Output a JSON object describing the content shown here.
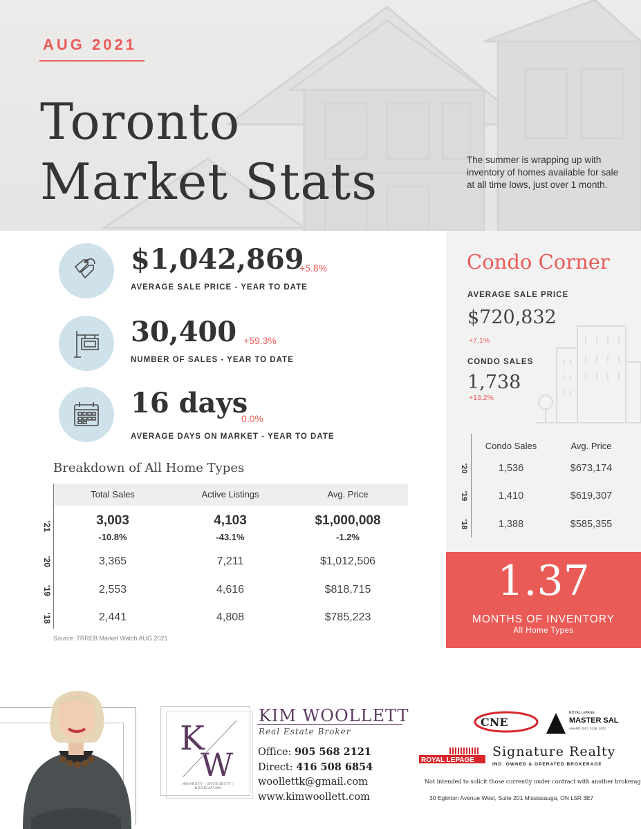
{
  "header": {
    "date": "AUG 2021",
    "title_line1": "Toronto",
    "title_line2": "Market Stats",
    "intro": "The summer is wrapping up with inventory of homes available for sale at all time lows, just over 1 month."
  },
  "stats": [
    {
      "icon": "price-tag-icon",
      "value": "$1,042,869",
      "change": "+5.8%",
      "label": "AVERAGE SALE PRICE - YEAR TO DATE"
    },
    {
      "icon": "house-sign-icon",
      "value": "30,400",
      "change": "+59.3%",
      "label": "NUMBER OF SALES - YEAR TO DATE"
    },
    {
      "icon": "calendar-icon",
      "value": "16 days",
      "change": "0.0%",
      "label": "AVERAGE DAYS ON MARKET - YEAR TO DATE"
    }
  ],
  "breakdown": {
    "title": "Breakdown of All Home Types",
    "columns": [
      "Total Sales",
      "Active Listings",
      "Avg. Price"
    ],
    "rows": [
      {
        "year": "'21",
        "cells": [
          "3,003",
          "4,103",
          "$1,000,008"
        ],
        "changes": [
          "-10.8%",
          "-43.1%",
          "-1.2%"
        ]
      },
      {
        "year": "'20",
        "cells": [
          "3,365",
          "7,211",
          "$1,012,506"
        ]
      },
      {
        "year": "'19",
        "cells": [
          "2,553",
          "4,616",
          "$818,715"
        ]
      },
      {
        "year": "'18",
        "cells": [
          "2,441",
          "4,808",
          "$785,223"
        ]
      }
    ],
    "source": "Source: TRREB Market Watch AUG 2021"
  },
  "condo": {
    "title": "Condo Corner",
    "avg_label": "AVERAGE SALE PRICE",
    "avg_value": "$720,832",
    "avg_change": "+7.1%",
    "sales_label": "CONDO SALES",
    "sales_value": "1,738",
    "sales_change": "+13.2%",
    "table_headers": [
      "Condo Sales",
      "Avg. Price"
    ],
    "rows": [
      {
        "year": "'20",
        "sales": "1,536",
        "price": "$673,174"
      },
      {
        "year": "'19",
        "sales": "1,410",
        "price": "$619,307"
      },
      {
        "year": "'18",
        "sales": "1,388",
        "price": "$585,355"
      }
    ]
  },
  "inventory": {
    "value": "1.37",
    "label": "MONTHS OF INVENTORY",
    "sublabel": "All Home Types"
  },
  "agent": {
    "name": "KIM WOOLLETT",
    "role": "Real Estate Broker",
    "logo_tagline": "HONESTY | INTEGRITY | DEDICATION",
    "office_label": "Office: ",
    "office": "905 568 2121",
    "direct_label": "Direct: ",
    "direct": "416 508 6854",
    "email": "woollettk@gmail.com",
    "website": "www.kimwoollett.com"
  },
  "brokerage": {
    "cne": "CNE",
    "master_small": "ROYAL LePAGE",
    "master": "MASTER SALES",
    "master_award": "AWARD 2017, 2019, 2020",
    "royal": "ROYAL LEPAGE",
    "name": "Signature Realty",
    "sub": "IND. OWNED & OPERATED BROKERAGE",
    "disclaimer": "Not intended to solicit those currently under contract with another brokerage.",
    "address": "30 Eglinton Avenue West, Suite 201 Mississauga, ON  L5R 3E7"
  },
  "colors": {
    "accent": "#ea5b57",
    "icon_bg": "#cfe1ea",
    "agent_purple": "#5b3a5e"
  }
}
